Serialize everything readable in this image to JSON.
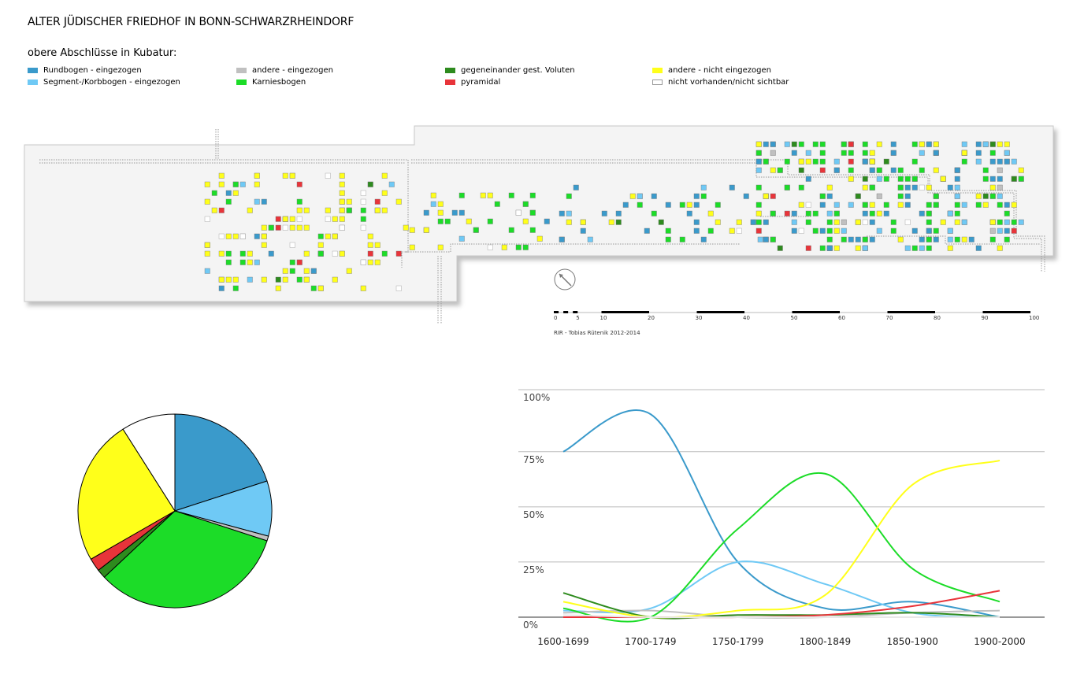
{
  "header": {
    "title": "ALTER JÜDISCHER FRIEDHOF IN BONN-SCHWARZRHEINDORF",
    "subtitle": "obere Abschlüsse in Kubatur:"
  },
  "legend": [
    {
      "label": "Rundbogen - eingezogen",
      "color": "#3a9acb"
    },
    {
      "label": "Segment-/Korbbogen - eingezogen",
      "color": "#6fc9f5"
    },
    {
      "label": "andere - eingezogen",
      "color": "#c0c0c0"
    },
    {
      "label": "Karniesbogen",
      "color": "#1cdc28"
    },
    {
      "label": "gegeneinander gest. Voluten",
      "color": "#2e8b1e"
    },
    {
      "label": "pyramidal",
      "color": "#e8343a"
    },
    {
      "label": "andere - nicht eingezogen",
      "color": "#ffff1a"
    },
    {
      "label": "nicht vorhanden/nicht sichtbar",
      "color": "#ffffff"
    }
  ],
  "scalebar": {
    "ticks": [
      "0",
      "5",
      "10",
      "20",
      "30",
      "40",
      "50",
      "60",
      "70",
      "80",
      "90",
      "100"
    ],
    "credit": "RIR - Tobias Rütenik 2012-2014"
  },
  "chart_data": [
    {
      "type": "pie",
      "slices": [
        {
          "label": "Rundbogen - eingezogen",
          "value": 20.0,
          "color": "#3a9acb"
        },
        {
          "label": "Segment-/Korbbogen - eingezogen",
          "value": 9.2,
          "color": "#6fc9f5"
        },
        {
          "label": "andere - eingezogen",
          "value": 0.8,
          "color": "#c0c0c0"
        },
        {
          "label": "Karniesbogen",
          "value": 33.0,
          "color": "#1cdc28"
        },
        {
          "label": "gegeneinander gest. Voluten",
          "value": 1.5,
          "color": "#2e8b1e"
        },
        {
          "label": "pyramidal",
          "value": 2.2,
          "color": "#e8343a"
        },
        {
          "label": "andere - nicht eingezogen",
          "value": 24.3,
          "color": "#ffff1a"
        },
        {
          "label": "nicht vorhanden/nicht sichtbar",
          "value": 9.0,
          "color": "#ffffff"
        }
      ]
    },
    {
      "type": "line",
      "categories": [
        "1600-1699",
        "1700-1749",
        "1750-1799",
        "1800-1849",
        "1850-1900",
        "1900-2000"
      ],
      "y_ticks": [
        "0%",
        "25%",
        "50%",
        "75%",
        "100%"
      ],
      "ylim": [
        0,
        100
      ],
      "grid": true,
      "series": [
        {
          "name": "Rundbogen - eingezogen",
          "color": "#3a9acb",
          "values": [
            75,
            92,
            25,
            4,
            7,
            0
          ]
        },
        {
          "name": "Segment-/Korbbogen - eingezogen",
          "color": "#6fc9f5",
          "values": [
            3,
            4,
            25,
            15,
            2,
            0
          ]
        },
        {
          "name": "andere - eingezogen",
          "color": "#c0c0c0",
          "values": [
            2,
            3,
            0,
            0,
            2,
            3
          ]
        },
        {
          "name": "Karniesbogen",
          "color": "#1cdc28",
          "values": [
            4,
            0,
            40,
            65,
            22,
            7
          ]
        },
        {
          "name": "gegeneinander gest. Voluten",
          "color": "#2e8b1e",
          "values": [
            11,
            0,
            1,
            1,
            2,
            0
          ]
        },
        {
          "name": "pyramidal",
          "color": "#e8343a",
          "values": [
            0,
            0,
            0,
            1,
            5,
            12
          ]
        },
        {
          "name": "andere - nicht eingezogen",
          "color": "#ffff1a",
          "values": [
            7,
            0,
            3,
            10,
            60,
            71
          ]
        },
        {
          "name": "nicht vorhanden/nicht sichtbar",
          "color": "#e8e8e8",
          "values": [
            1,
            0,
            0,
            0,
            0,
            0
          ]
        }
      ]
    }
  ]
}
